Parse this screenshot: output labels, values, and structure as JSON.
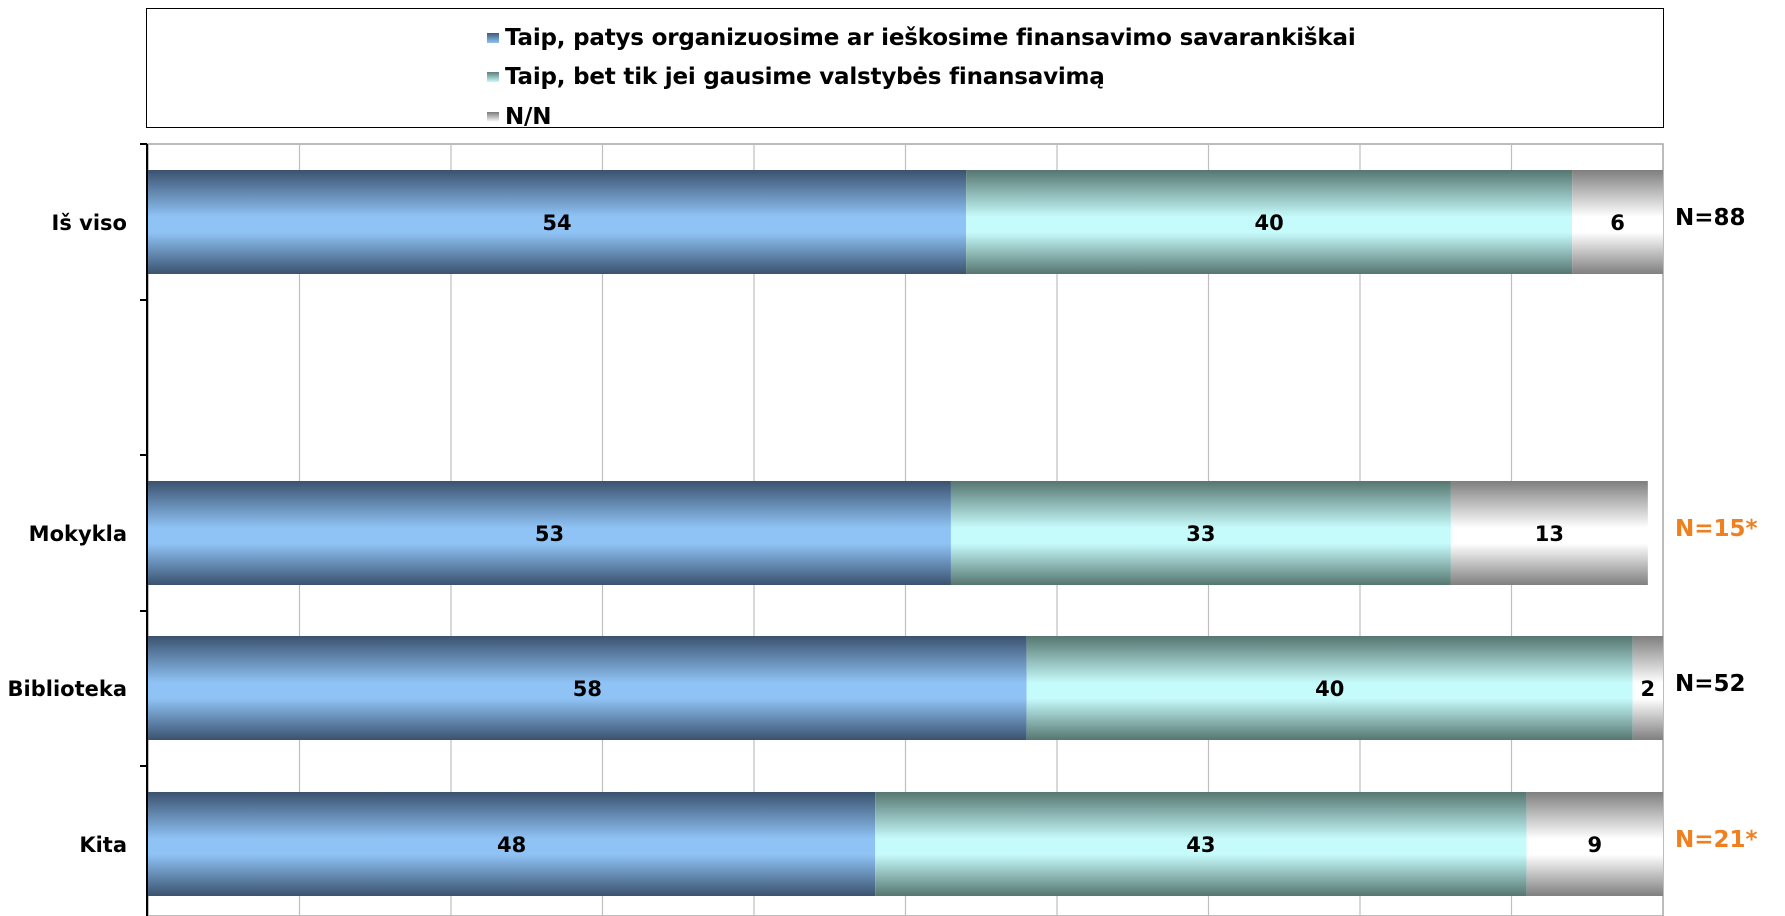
{
  "chart_data": {
    "type": "bar",
    "orientation": "horizontal",
    "stacked": true,
    "categories": [
      "Iš viso",
      "Mokykla",
      "Biblioteka",
      "Kita"
    ],
    "series": [
      {
        "name": "Taip, patys organizuosime ar ieškosime finansavimo savarankiškai",
        "values": [
          54,
          53,
          58,
          48
        ],
        "color": "#8fc3f5"
      },
      {
        "name": "Taip, bet tik jei gausime valstybės finansavimą",
        "values": [
          40,
          33,
          40,
          43
        ],
        "color": "#c6fbfb"
      },
      {
        "name": "N/N",
        "values": [
          6,
          13,
          2,
          9
        ],
        "color": "#ffffff"
      }
    ],
    "n_labels": [
      {
        "text": "N=88",
        "color": "#000000"
      },
      {
        "text": "N=15*",
        "color": "#f07f1e"
      },
      {
        "text": "N=52",
        "color": "#000000"
      },
      {
        "text": "N=21*",
        "color": "#f07f1e"
      }
    ],
    "xlim": [
      0,
      100
    ],
    "grid": true,
    "legend_position": "top",
    "title": "",
    "xlabel": "",
    "ylabel": ""
  }
}
